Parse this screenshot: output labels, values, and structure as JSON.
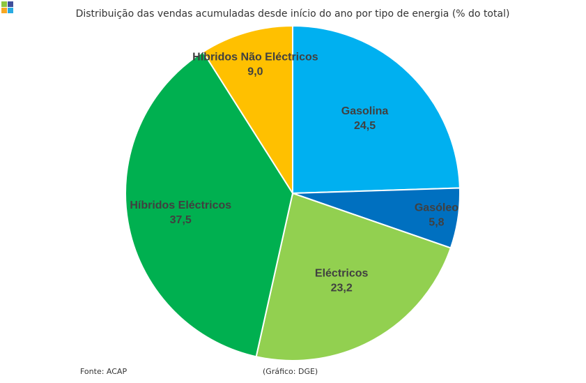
{
  "chart_data": {
    "type": "pie",
    "title": "Distribuição das vendas acumuladas desde início do ano por tipo de energia (% do total)",
    "categories": [
      "Gasolina",
      "Gasóleo",
      "Eléctricos",
      "Híbridos Eléctricos",
      "Híbridos Não Eléctricos"
    ],
    "values": [
      24.5,
      5.8,
      23.2,
      37.5,
      9.0
    ],
    "value_labels": [
      "24,5",
      "5,8",
      "23,2",
      "37,5",
      "9,0"
    ],
    "colors": [
      "#00b0f0",
      "#0070c0",
      "#92d050",
      "#00b050",
      "#ffc000"
    ],
    "source": "Fonte: ACAP",
    "credit": "(Gráfico: DGE)"
  }
}
